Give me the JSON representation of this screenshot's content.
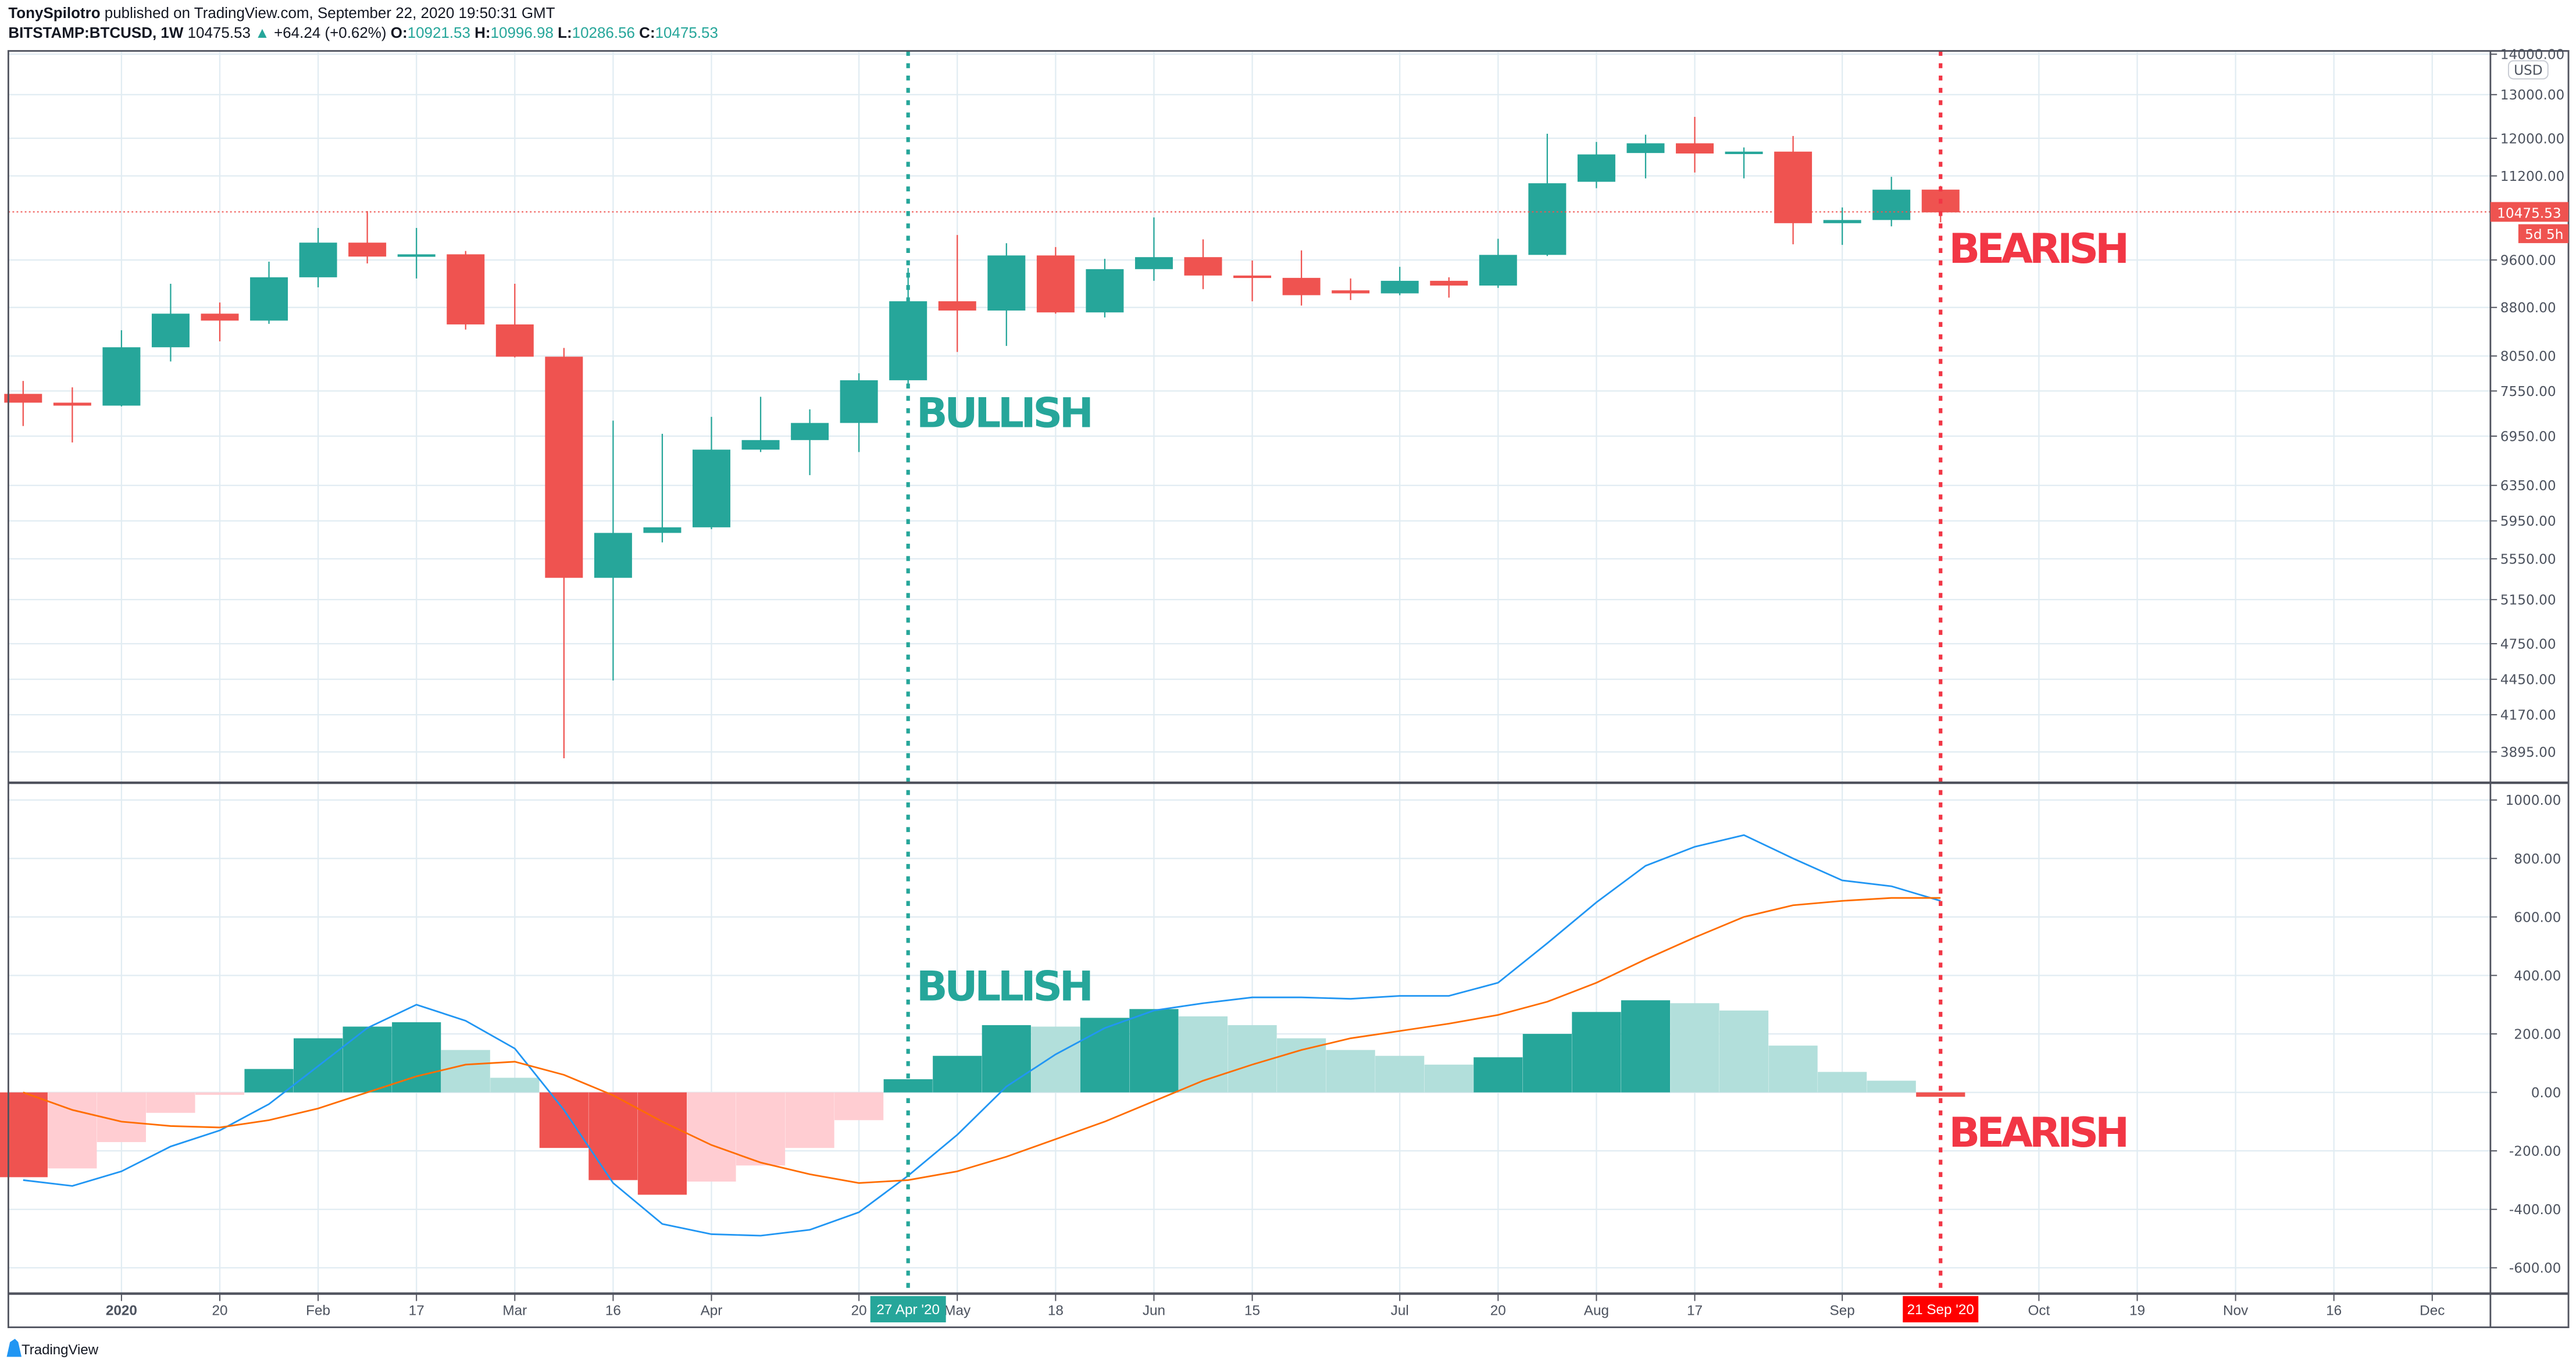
{
  "header": {
    "author": "TonySpilotro",
    "published": "published on TradingView.com, September 22, 2020 19:50:31 GMT",
    "symbol": "BITSTAMP:BTCUSD, 1W",
    "last": "10475.53",
    "change": "+64.24 (+0.62%)",
    "o_label": "O:",
    "o": "10921.53",
    "h_label": "H:",
    "h": "10996.98",
    "l_label": "L:",
    "l": "10286.56",
    "c_label": "C:",
    "c": "10475.53"
  },
  "colors": {
    "up": "#26a69a",
    "down": "#ef5350",
    "hist_up_grow": "#26a69a",
    "hist_up_fall": "#b2dfdb",
    "hist_down_grow": "#ef5350",
    "hist_down_fall": "#ffcdd2",
    "macd": "#2196f3",
    "signal": "#ff6d00",
    "grid": "#e1ecf2",
    "bullish": "#26a69a",
    "bearish": "#f23645"
  },
  "price_axis": {
    "currency": "USD",
    "scale": "log",
    "ticks": [
      "14000.00",
      "13000.00",
      "12000.00",
      "11200.00",
      "9600.00",
      "8800.00",
      "8050.00",
      "7550.00",
      "6950.00",
      "6350.00",
      "5950.00",
      "5550.00",
      "5150.00",
      "4750.00",
      "4450.00",
      "4170.00",
      "3895.00"
    ],
    "last_price_label": "10475.53",
    "countdown": "5d 5h"
  },
  "macd_axis": {
    "ticks": [
      "1000.00",
      "800.00",
      "600.00",
      "400.00",
      "200.00",
      "0.00",
      "-200.00",
      "-400.00",
      "-600.00"
    ]
  },
  "time_axis": {
    "ticks": [
      {
        "label": "2020",
        "date": "2020-01-06"
      },
      {
        "label": "20",
        "date": "2020-01-20"
      },
      {
        "label": "Feb",
        "date": "2020-02-03"
      },
      {
        "label": "17",
        "date": "2020-02-17"
      },
      {
        "label": "Mar",
        "date": "2020-03-02"
      },
      {
        "label": "16",
        "date": "2020-03-16"
      },
      {
        "label": "Apr",
        "date": "2020-03-30"
      },
      {
        "label": "20",
        "date": "2020-04-20"
      },
      {
        "label": "May",
        "date": "2020-05-04"
      },
      {
        "label": "18",
        "date": "2020-05-18"
      },
      {
        "label": "Jun",
        "date": "2020-06-01"
      },
      {
        "label": "15",
        "date": "2020-06-15"
      },
      {
        "label": "Jul",
        "date": "2020-07-06"
      },
      {
        "label": "20",
        "date": "2020-07-20"
      },
      {
        "label": "Aug",
        "date": "2020-08-03"
      },
      {
        "label": "17",
        "date": "2020-08-17"
      },
      {
        "label": "Sep",
        "date": "2020-09-07"
      },
      {
        "label": "Oct",
        "date": "2020-10-05"
      },
      {
        "label": "19",
        "date": "2020-10-19"
      },
      {
        "label": "Nov",
        "date": "2020-11-02"
      },
      {
        "label": "16",
        "date": "2020-11-16"
      },
      {
        "label": "Dec",
        "date": "2020-11-30"
      }
    ],
    "marker_bullish": {
      "label": "27 Apr '20",
      "date": "2020-04-27"
    },
    "marker_bearish": {
      "label": "21 Sep '20",
      "date": "2020-09-21"
    }
  },
  "annotations": {
    "price_bullish": "BULLISH",
    "price_bearish": "BEARISH",
    "macd_bullish": "BULLISH",
    "macd_bearish": "BEARISH"
  },
  "chart_data": [
    {
      "type": "candlestick",
      "title": "BITSTAMP:BTCUSD, 1W",
      "y_scale": "log",
      "ylim": [
        3700,
        14500
      ],
      "grid": true,
      "dates": [
        "2019-12-23",
        "2019-12-30",
        "2020-01-06",
        "2020-01-13",
        "2020-01-20",
        "2020-01-27",
        "2020-02-03",
        "2020-02-10",
        "2020-02-17",
        "2020-02-24",
        "2020-03-02",
        "2020-03-09",
        "2020-03-16",
        "2020-03-23",
        "2020-03-30",
        "2020-04-06",
        "2020-04-13",
        "2020-04-20",
        "2020-04-27",
        "2020-05-04",
        "2020-05-11",
        "2020-05-18",
        "2020-05-25",
        "2020-06-01",
        "2020-06-08",
        "2020-06-15",
        "2020-06-22",
        "2020-06-29",
        "2020-07-06",
        "2020-07-13",
        "2020-07-20",
        "2020-07-27",
        "2020-08-03",
        "2020-08-10",
        "2020-08-17",
        "2020-08-24",
        "2020-08-31",
        "2020-09-07",
        "2020-09-14",
        "2020-09-21"
      ],
      "open": [
        7510,
        7390,
        7350,
        8180,
        8700,
        8590,
        9300,
        9910,
        9660,
        9700,
        8530,
        8040,
        5360,
        5820,
        5880,
        6780,
        6900,
        7120,
        7700,
        8900,
        8750,
        9680,
        8720,
        9440,
        9650,
        9330,
        9290,
        9080,
        9030,
        9240,
        9160,
        9690,
        11080,
        11680,
        11890,
        11670,
        11710,
        10270,
        10330,
        10921.53
      ],
      "high": [
        7690,
        7600,
        8440,
        9190,
        8880,
        9570,
        10180,
        10500,
        10180,
        9760,
        9190,
        8170,
        7150,
        6980,
        7200,
        7470,
        7300,
        7800,
        9460,
        10050,
        9900,
        9830,
        9620,
        10380,
        9970,
        9590,
        9770,
        9280,
        9480,
        9300,
        9980,
        12100,
        11920,
        12080,
        12480,
        11800,
        12050,
        10570,
        11180,
        10996.98
      ],
      "low": [
        7080,
        6870,
        7340,
        7970,
        8270,
        8540,
        9130,
        9540,
        9280,
        8450,
        8030,
        3850,
        4440,
        5720,
        5860,
        6750,
        6470,
        6750,
        7640,
        8110,
        8200,
        8700,
        8640,
        9240,
        9100,
        8900,
        8830,
        8920,
        9000,
        8960,
        9120,
        9670,
        10950,
        11150,
        11270,
        11150,
        9880,
        9870,
        10210,
        10286.56
      ],
      "close": [
        7390,
        7350,
        8180,
        8700,
        8590,
        9300,
        9910,
        9660,
        9700,
        8530,
        8040,
        5360,
        5820,
        5880,
        6780,
        6900,
        7120,
        7700,
        8900,
        8750,
        9680,
        8720,
        9440,
        9650,
        9330,
        9290,
        9000,
        9030,
        9240,
        9160,
        9690,
        11050,
        11650,
        11890,
        11670,
        11710,
        10270,
        10330,
        10920,
        10475.53
      ],
      "last_price": 10475.53
    },
    {
      "type": "bar+line",
      "ylim": [
        -700,
        1050
      ],
      "grid": true,
      "dates_ref": "same weekly dates as candlestick",
      "histogram": [
        -290,
        -260,
        -170,
        -70,
        -5,
        80,
        185,
        225,
        240,
        145,
        50,
        -190,
        -300,
        -350,
        -305,
        -250,
        -190,
        -95,
        45,
        125,
        230,
        225,
        255,
        285,
        260,
        230,
        185,
        145,
        125,
        95,
        120,
        200,
        275,
        315,
        305,
        280,
        160,
        70,
        40,
        -15
      ],
      "series": [
        {
          "values": [
            -300,
            -320,
            -270,
            -185,
            -130,
            -40,
            90,
            220,
            300,
            245,
            150,
            -60,
            -310,
            -450,
            -485,
            -490,
            -470,
            -410,
            -285,
            -145,
            20,
            130,
            220,
            280,
            305,
            325,
            325,
            320,
            330,
            330,
            375,
            510,
            650,
            775,
            840,
            880,
            800,
            725,
            705,
            655
          ]
        },
        {
          "values": [
            0,
            -60,
            -100,
            -115,
            -120,
            -95,
            -55,
            0,
            55,
            95,
            105,
            60,
            -10,
            -100,
            -180,
            -240,
            -280,
            -310,
            -300,
            -270,
            -220,
            -160,
            -100,
            -30,
            40,
            95,
            145,
            185,
            210,
            235,
            265,
            310,
            375,
            455,
            530,
            600,
            640,
            655,
            665,
            665
          ]
        }
      ]
    }
  ]
}
